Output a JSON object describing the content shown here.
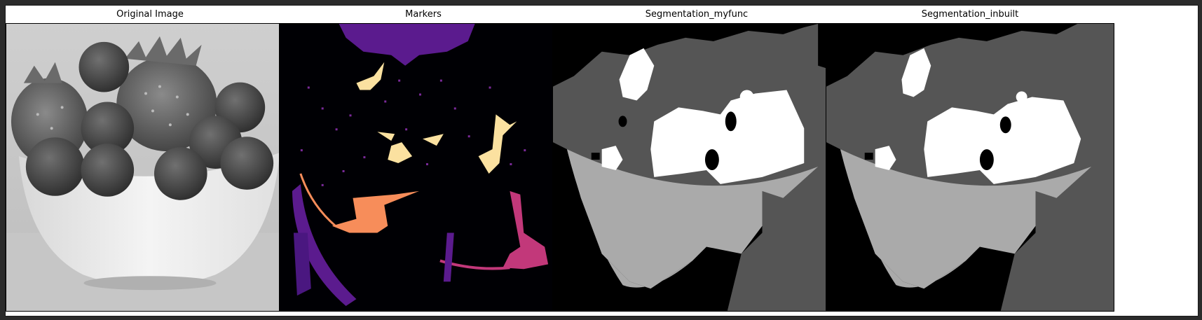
{
  "figure": {
    "panels": [
      {
        "id": "original",
        "title": "Original Image"
      },
      {
        "id": "markers",
        "title": "Markers"
      },
      {
        "id": "seg-myfunc",
        "title": "Segmentation_myfunc"
      },
      {
        "id": "seg-inbuilt",
        "title": "Segmentation_inbuilt"
      }
    ]
  },
  "colors": {
    "window_bg": "#2b2b2b",
    "canvas_bg": "#ffffff",
    "marker_bg": "#000004",
    "marker_purple": "#5b1b8e",
    "marker_magenta": "#c2387a",
    "marker_orange": "#f78d5a",
    "marker_yellow": "#fbe1a0",
    "seg_black": "#000000",
    "seg_dark_gray": "#555555",
    "seg_light_gray": "#aaaaaa",
    "seg_white": "#ffffff"
  }
}
